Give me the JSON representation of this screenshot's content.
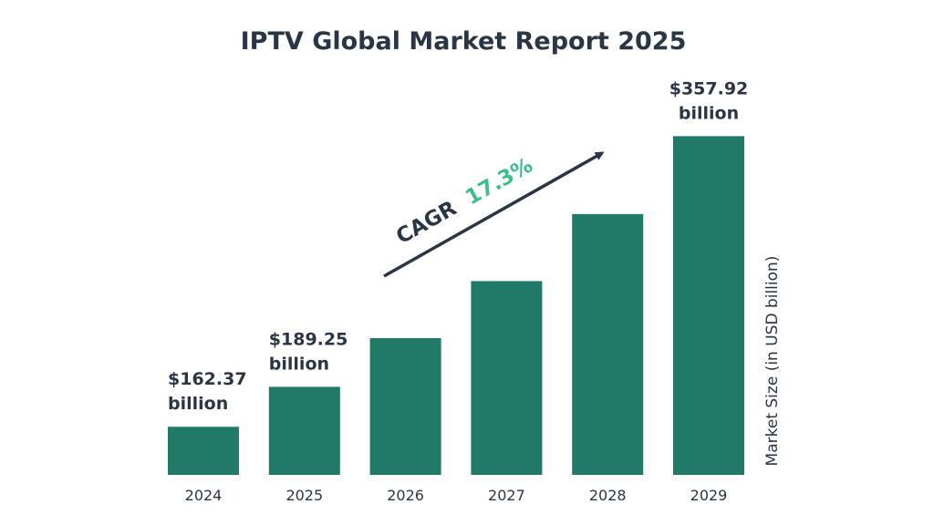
{
  "chart_data": {
    "type": "bar",
    "title": "IPTV Global Market Report 2025",
    "ylabel": "Market Size (in USD billion)",
    "xlabel": "",
    "categories": [
      "2024",
      "2025",
      "2026",
      "2027",
      "2028",
      "2029"
    ],
    "values": [
      162.37,
      189.25,
      222.0,
      260.4,
      305.5,
      357.92
    ],
    "data_labels": [
      {
        "index": 0,
        "line1": "$162.37",
        "line2": "billion"
      },
      {
        "index": 1,
        "line1": "$189.25",
        "line2": "billion"
      },
      {
        "index": 5,
        "line1": "$357.92",
        "line2": "billion"
      }
    ],
    "ylim": [
      130,
      360
    ],
    "grid": false,
    "annotation": {
      "label": "CAGR",
      "value": "17.3%"
    },
    "colors": {
      "bar": "#217a68",
      "text": "#2b3645",
      "cagr_value": "#3dbe8b",
      "arrow": "#2b3645"
    }
  }
}
